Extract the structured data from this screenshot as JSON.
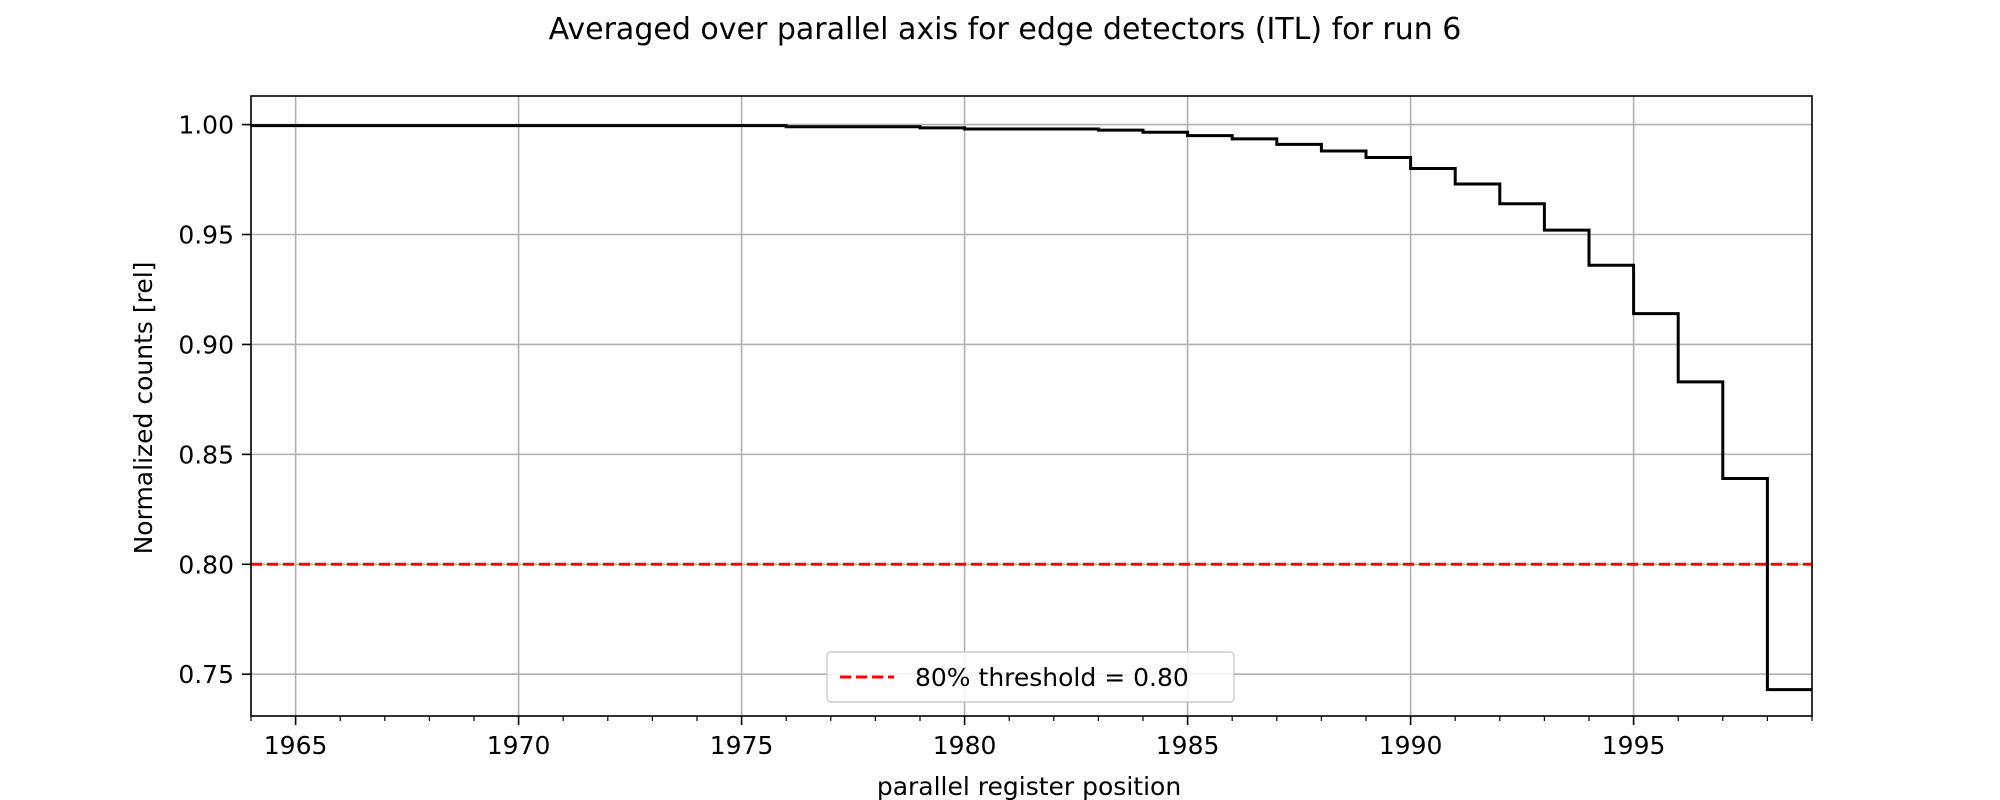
{
  "chart_data": {
    "type": "line",
    "title": "Averaged over parallel axis for edge detectors (ITL) for run 6",
    "xlabel": "parallel register position",
    "ylabel": "Normalized counts [rel]",
    "xlim": [
      1964,
      1999
    ],
    "ylim": [
      0.731,
      1.013
    ],
    "x_ticks": [
      1965,
      1970,
      1975,
      1980,
      1985,
      1990,
      1995
    ],
    "y_ticks": [
      0.75,
      0.8,
      0.85,
      0.9,
      0.95,
      1.0
    ],
    "x_tick_labels": [
      "1965",
      "1970",
      "1975",
      "1980",
      "1985",
      "1990",
      "1995"
    ],
    "y_tick_labels": [
      "0.75",
      "0.80",
      "0.85",
      "0.90",
      "0.95",
      "1.00"
    ],
    "grid": true,
    "legend_position": "bottom-center",
    "series": [
      {
        "name": "",
        "style": "step-post",
        "color": "#000000",
        "x": [
          1964,
          1965,
          1966,
          1967,
          1968,
          1969,
          1970,
          1971,
          1972,
          1973,
          1974,
          1975,
          1976,
          1977,
          1978,
          1979,
          1980,
          1981,
          1982,
          1983,
          1984,
          1985,
          1986,
          1987,
          1988,
          1989,
          1990,
          1991,
          1992,
          1993,
          1994,
          1995,
          1996,
          1997,
          1998
        ],
        "y": [
          0.9995,
          0.9995,
          0.9995,
          0.9995,
          0.9995,
          0.9995,
          0.9995,
          0.9995,
          0.9995,
          0.9995,
          0.9995,
          0.9995,
          0.999,
          0.999,
          0.999,
          0.9985,
          0.998,
          0.998,
          0.998,
          0.9975,
          0.9965,
          0.995,
          0.9935,
          0.991,
          0.988,
          0.985,
          0.98,
          0.973,
          0.964,
          0.952,
          0.936,
          0.914,
          0.883,
          0.839,
          0.743
        ]
      },
      {
        "name": "80% threshold = 0.80",
        "style": "dashed-horizontal",
        "color": "#ff0000",
        "y": 0.8
      }
    ]
  }
}
